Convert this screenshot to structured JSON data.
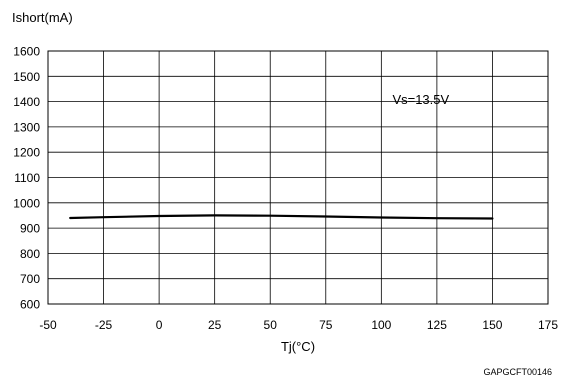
{
  "chart_data": {
    "type": "line",
    "ylabel": "Ishort(mA)",
    "xlabel": "Tj(°C)",
    "xlim": [
      -50,
      175
    ],
    "ylim": [
      600,
      1600
    ],
    "xticks": [
      -50,
      -25,
      0,
      25,
      50,
      75,
      100,
      125,
      150,
      175
    ],
    "yticks": [
      600,
      700,
      800,
      900,
      1000,
      1100,
      1200,
      1300,
      1400,
      1500,
      1600
    ],
    "grid": true,
    "series": [
      {
        "x": [
          -40,
          -25,
          0,
          25,
          50,
          75,
          100,
          125,
          150
        ],
        "y": [
          940,
          943,
          948,
          950,
          949,
          946,
          942,
          939,
          938
        ]
      }
    ],
    "annotations": [
      {
        "text": "Vs=13.5V",
        "x": 105,
        "y": 1390
      }
    ],
    "footer": "GAPGCFT00146"
  }
}
